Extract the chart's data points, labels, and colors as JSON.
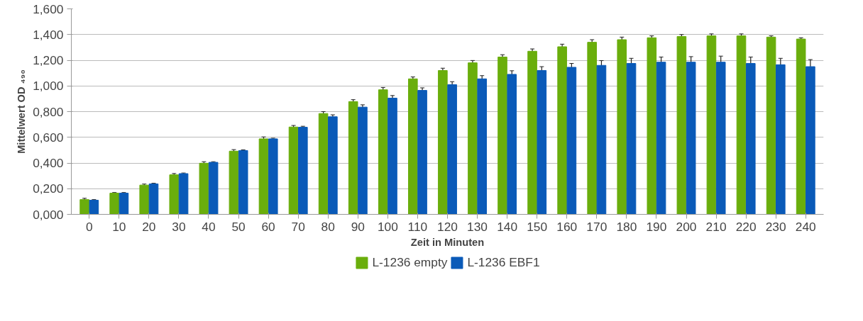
{
  "chart_data": {
    "type": "bar",
    "xlabel": "Zeit in Minuten",
    "ylabel": "Mittelwert OD ₄₉₀",
    "categories": [
      "0",
      "10",
      "20",
      "30",
      "40",
      "50",
      "60",
      "70",
      "80",
      "90",
      "100",
      "110",
      "120",
      "130",
      "140",
      "150",
      "160",
      "170",
      "180",
      "190",
      "200",
      "210",
      "220",
      "230",
      "240"
    ],
    "series": [
      {
        "name": "L-1236 empty",
        "color": "#6aae0c",
        "values": [
          0.115,
          0.165,
          0.228,
          0.308,
          0.398,
          0.492,
          0.588,
          0.68,
          0.785,
          0.878,
          0.97,
          1.055,
          1.12,
          1.18,
          1.225,
          1.27,
          1.305,
          1.34,
          1.36,
          1.375,
          1.385,
          1.39,
          1.39,
          1.38,
          1.365
        ],
        "errors": [
          0.01,
          0.005,
          0.008,
          0.01,
          0.012,
          0.012,
          0.015,
          0.012,
          0.015,
          0.015,
          0.018,
          0.015,
          0.018,
          0.018,
          0.018,
          0.018,
          0.02,
          0.02,
          0.02,
          0.015,
          0.015,
          0.015,
          0.015,
          0.01,
          0.01
        ]
      },
      {
        "name": "L-1236 EBF1",
        "color": "#0a5ab8",
        "values": [
          0.11,
          0.165,
          0.237,
          0.317,
          0.405,
          0.497,
          0.588,
          0.678,
          0.76,
          0.835,
          0.905,
          0.965,
          1.01,
          1.055,
          1.09,
          1.12,
          1.145,
          1.16,
          1.175,
          1.185,
          1.185,
          1.185,
          1.175,
          1.165,
          1.15
        ],
        "errors": [
          0.005,
          0.005,
          0.005,
          0.005,
          0.005,
          0.005,
          0.005,
          0.008,
          0.015,
          0.018,
          0.02,
          0.02,
          0.023,
          0.025,
          0.028,
          0.03,
          0.03,
          0.037,
          0.04,
          0.04,
          0.043,
          0.047,
          0.05,
          0.05,
          0.055
        ]
      }
    ],
    "ylim": [
      0,
      1.6
    ],
    "yticks": [
      {
        "value": 0,
        "label": "0,000"
      },
      {
        "value": 0.2,
        "label": "0,200"
      },
      {
        "value": 0.4,
        "label": "0,400"
      },
      {
        "value": 0.6,
        "label": "0,600"
      },
      {
        "value": 0.8,
        "label": "0,800"
      },
      {
        "value": 1.0,
        "label": "1,000"
      },
      {
        "value": 1.2,
        "label": "1,200"
      },
      {
        "value": 1.4,
        "label": "1,400"
      },
      {
        "value": 1.6,
        "label": "1,600"
      }
    ],
    "grid": "y",
    "legend": "bottom"
  }
}
